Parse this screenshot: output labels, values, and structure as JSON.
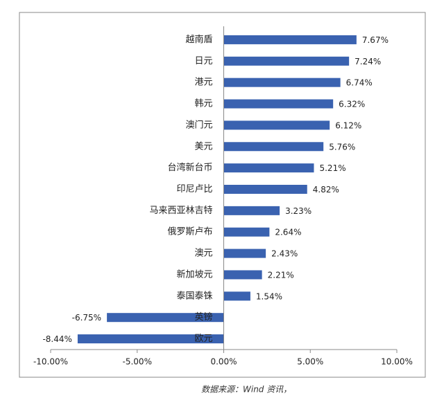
{
  "chart_data": {
    "type": "bar",
    "orientation": "horizontal",
    "categories": [
      "越南盾",
      "日元",
      "港元",
      "韩元",
      "澳门元",
      "美元",
      "台湾新台币",
      "印尼卢比",
      "马来西亚林吉特",
      "俄罗斯卢布",
      "澳元",
      "新加坡元",
      "泰国泰铢",
      "英镑",
      "欧元"
    ],
    "values": [
      7.67,
      7.24,
      6.74,
      6.32,
      6.12,
      5.76,
      5.21,
      4.82,
      3.23,
      2.64,
      2.43,
      2.21,
      1.54,
      -6.75,
      -8.44
    ],
    "value_labels": [
      "7.67%",
      "7.24%",
      "6.74%",
      "6.32%",
      "6.12%",
      "5.76%",
      "5.21%",
      "4.82%",
      "3.23%",
      "2.64%",
      "2.43%",
      "2.21%",
      "1.54%",
      "-6.75%",
      "-8.44%"
    ],
    "color": "#3a62b0",
    "xlim": [
      -10,
      10
    ],
    "xticks": [
      {
        "value": -10,
        "label": "-10.00%"
      },
      {
        "value": -5,
        "label": "-5.00%"
      },
      {
        "value": 0,
        "label": "0.00%"
      },
      {
        "value": 5,
        "label": "5.00%"
      },
      {
        "value": 10,
        "label": "10.00%"
      }
    ],
    "source": "数据来源：Wind 资讯，"
  }
}
